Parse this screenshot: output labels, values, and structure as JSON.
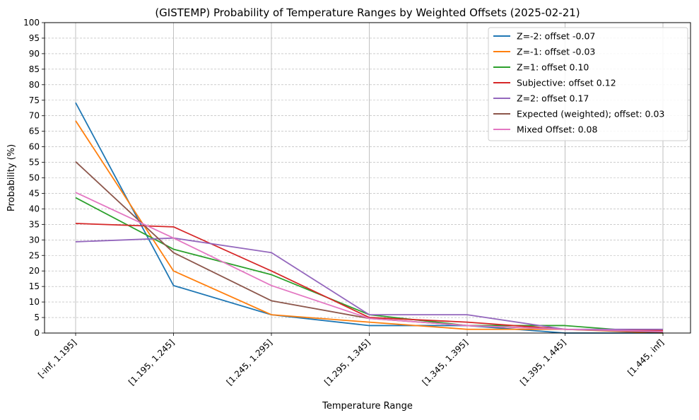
{
  "chart_data": {
    "type": "line",
    "title": "(GISTEMP) Probability of Temperature Ranges by Weighted Offsets (2025-02-21)",
    "xlabel": "Temperature Range",
    "ylabel": "Probability (%)",
    "categories": [
      "[-inf, 1.195]",
      "[1.195, 1.245]",
      "[1.245, 1.295]",
      "[1.295, 1.345]",
      "[1.345, 1.395]",
      "[1.395, 1.445]",
      "[1.445, inf]"
    ],
    "ylim": [
      0,
      100
    ],
    "yticks": [
      0,
      5,
      10,
      15,
      20,
      25,
      30,
      35,
      40,
      45,
      50,
      55,
      60,
      65,
      70,
      75,
      80,
      85,
      90,
      95,
      100
    ],
    "grid": true,
    "legend_position": "top-right",
    "series": [
      {
        "name": "Z=-2: offset -0.07",
        "color": "#1f77b4",
        "values": [
          74.2,
          15.3,
          5.9,
          2.4,
          2.4,
          0.0,
          0.0
        ]
      },
      {
        "name": "Z=-1: offset -0.03",
        "color": "#ff7f0e",
        "values": [
          68.4,
          20.0,
          5.9,
          3.5,
          1.2,
          1.2,
          0.0
        ]
      },
      {
        "name": "Z=1: offset 0.10",
        "color": "#2ca02c",
        "values": [
          43.6,
          27.0,
          18.8,
          5.9,
          2.4,
          2.4,
          0.0
        ]
      },
      {
        "name": "Subjective: offset 0.12",
        "color": "#d62728",
        "values": [
          35.3,
          34.2,
          20.0,
          5.0,
          3.5,
          1.2,
          0.8
        ]
      },
      {
        "name": "Z=2: offset 0.17",
        "color": "#9467bd",
        "values": [
          29.4,
          30.6,
          25.9,
          5.9,
          5.9,
          1.2,
          1.2
        ]
      },
      {
        "name": "Expected (weighted); offset: 0.03",
        "color": "#8c564b",
        "values": [
          55.2,
          25.9,
          10.4,
          4.7,
          2.4,
          1.2,
          0.2
        ]
      },
      {
        "name": "Mixed Offset: 0.08",
        "color": "#e377c2",
        "values": [
          45.3,
          30.6,
          15.3,
          4.7,
          2.4,
          1.2,
          0.5
        ]
      }
    ]
  }
}
